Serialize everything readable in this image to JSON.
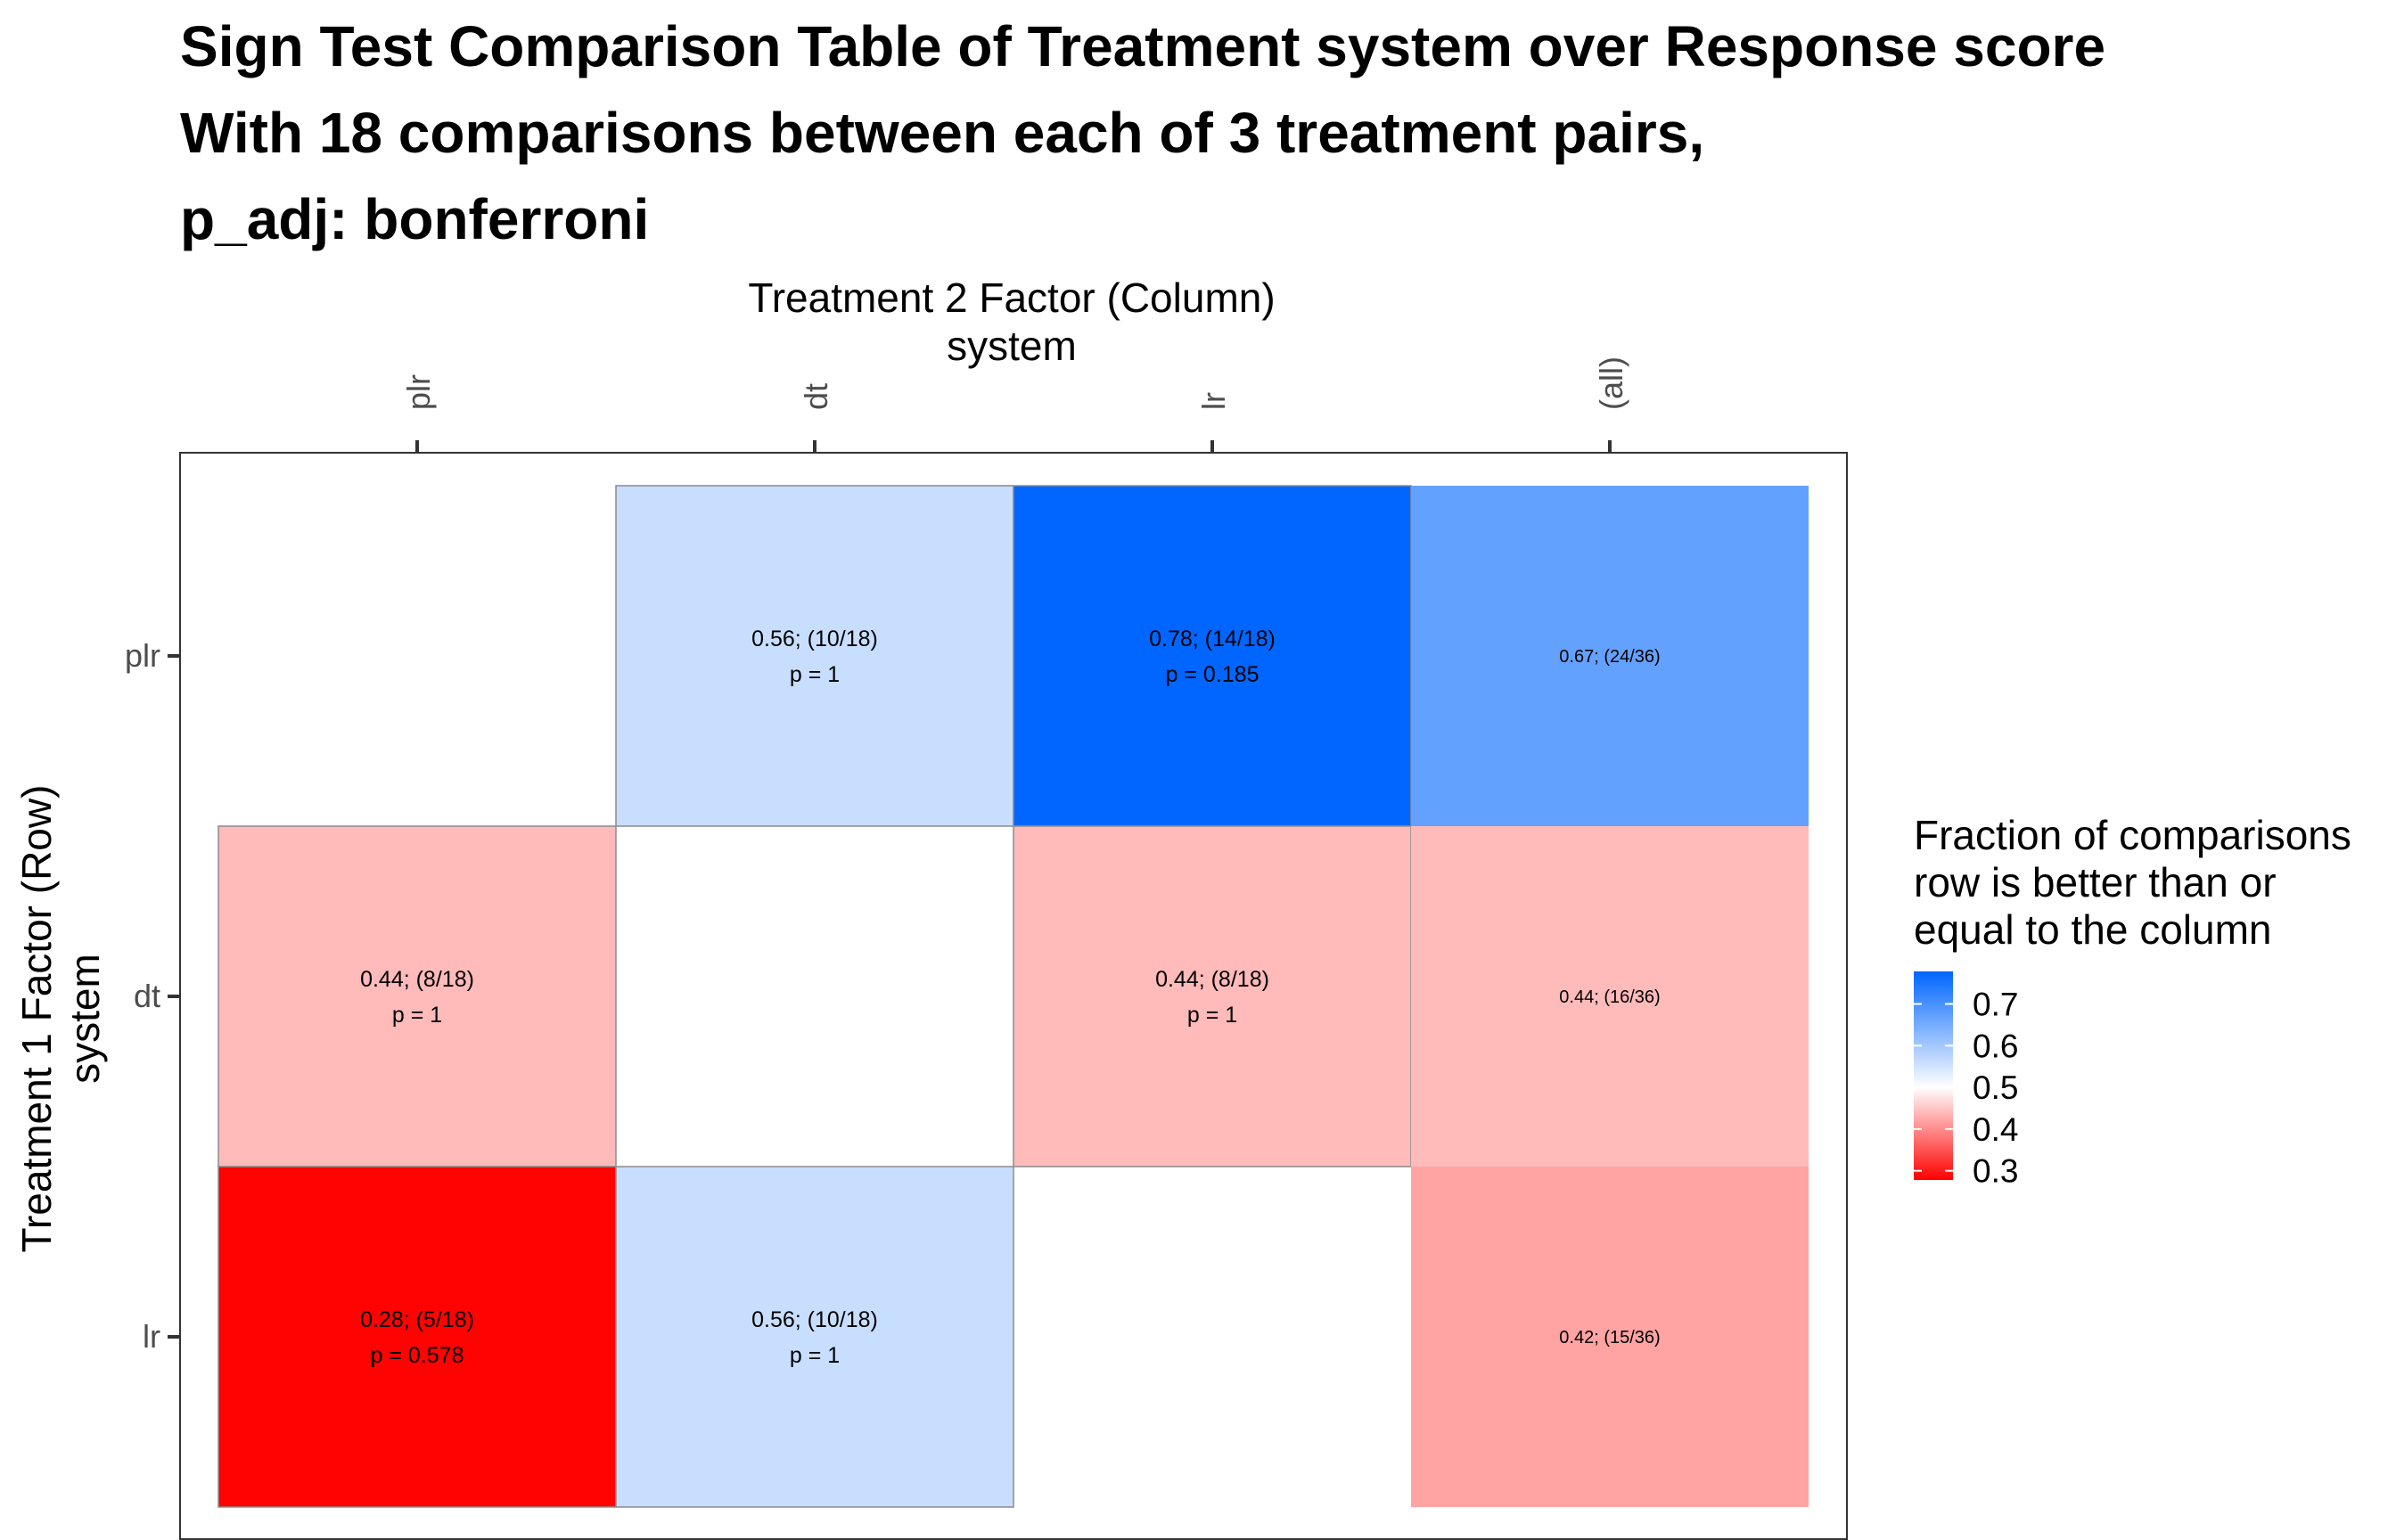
{
  "title": {
    "line1": "Sign Test Comparison Table of Treatment system over Response score",
    "line2": "With 18 comparisons between each of 3 treatment pairs,",
    "line3": "p_adj: bonferroni"
  },
  "chart_data": {
    "type": "heatmap",
    "x_axis": {
      "title_line1": "Treatment 2 Factor (Column)",
      "title_line2": "system",
      "position": "top",
      "categories": [
        "plr",
        "dt",
        "lr",
        "(all)"
      ]
    },
    "y_axis": {
      "title_line1": "Treatment 1 Factor (Row)",
      "title_line2": "system",
      "categories": [
        "plr",
        "dt",
        "lr"
      ]
    },
    "cells": [
      {
        "row": "plr",
        "col": "dt",
        "fraction": 0.56,
        "label": "0.56; (10/18)",
        "p": "p = 1"
      },
      {
        "row": "plr",
        "col": "lr",
        "fraction": 0.78,
        "label": "0.78; (14/18)",
        "p": "p = 0.185"
      },
      {
        "row": "plr",
        "col": "(all)",
        "fraction": 0.67,
        "label": "0.67; (24/36)",
        "p": ""
      },
      {
        "row": "dt",
        "col": "plr",
        "fraction": 0.44,
        "label": "0.44; (8/18)",
        "p": "p = 1"
      },
      {
        "row": "dt",
        "col": "lr",
        "fraction": 0.44,
        "label": "0.44; (8/18)",
        "p": "p = 1"
      },
      {
        "row": "dt",
        "col": "(all)",
        "fraction": 0.44,
        "label": "0.44; (16/36)",
        "p": ""
      },
      {
        "row": "lr",
        "col": "plr",
        "fraction": 0.28,
        "label": "0.28; (5/18)",
        "p": "p = 0.578"
      },
      {
        "row": "lr",
        "col": "dt",
        "fraction": 0.56,
        "label": "0.56; (10/18)",
        "p": "p = 1"
      },
      {
        "row": "lr",
        "col": "(all)",
        "fraction": 0.42,
        "label": "0.42; (15/36)",
        "p": ""
      }
    ],
    "legend": {
      "title_lines": [
        "Fraction of comparisons",
        "row is better than or",
        "equal to the column"
      ],
      "ticks": [
        "0.7",
        "0.6",
        "0.5",
        "0.4",
        "0.3"
      ],
      "range": [
        0.278,
        0.778
      ],
      "colors": {
        "low": "#ff0000",
        "mid": "#ffffff",
        "high": "#0066ff"
      },
      "placement": "right"
    },
    "grid": false
  }
}
